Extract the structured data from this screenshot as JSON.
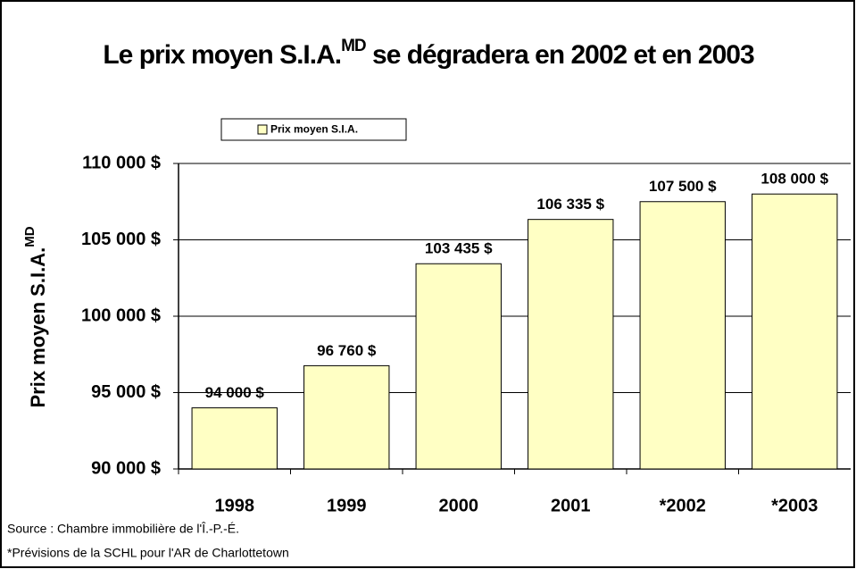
{
  "chart_data": {
    "type": "bar",
    "title": {
      "text": "Le prix moyen S.I.A.",
      "superscript": "MD",
      "rest": "se dégradera en 2002 et en 2003"
    },
    "y_label": {
      "text": "Prix moyen S.I.A.",
      "superscript": "MD"
    },
    "categories": [
      "1998",
      "1999",
      "2000",
      "2001",
      "*2002",
      "*2003"
    ],
    "series": [
      {
        "name": "Prix moyen S.I.A.",
        "color": "#ffffc4",
        "values": [
          94000,
          96760,
          103435,
          106335,
          107500,
          108000
        ],
        "value_labels": [
          "94 000  $",
          "96 760  $",
          "103 435  $",
          "106 335  $",
          "107 500  $",
          "108 000  $"
        ]
      }
    ],
    "ylim": [
      90000,
      110000
    ],
    "yticks": [
      {
        "value": 90000,
        "label": "90 000  $"
      },
      {
        "value": 95000,
        "label": "95 000  $"
      },
      {
        "value": 100000,
        "label": "100 000  $"
      },
      {
        "value": 105000,
        "label": "105 000  $"
      },
      {
        "value": 110000,
        "label": "110 000  $"
      }
    ],
    "grid": true,
    "notes": [
      "Source : Chambre immobilière de l'Î.-P.-É.",
      "*Prévisions de la SCHL pour l'AR de Charlottetown"
    ]
  }
}
